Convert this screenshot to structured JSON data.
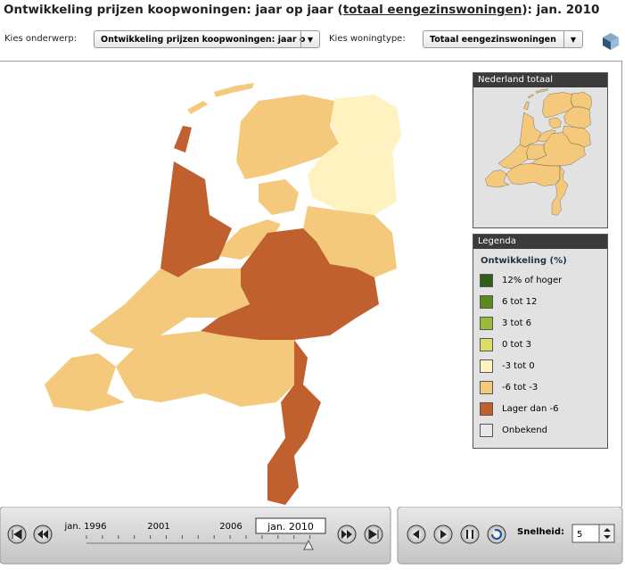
{
  "header": {
    "title_prefix": "Ontwikkeling prijzen koopwoningen: jaar op jaar (",
    "title_link": "totaal eengezinswoningen",
    "title_suffix": "): jan. 2010"
  },
  "controls": {
    "subject_label": "Kies onderwerp:",
    "subject_value": "Ontwikkeling prijzen koopwoningen: jaar o",
    "housing_label": "Kies woningtype:",
    "housing_value": "Totaal eengezinswoningen"
  },
  "overview": {
    "title": "Nederland totaal"
  },
  "legend": {
    "title": "Legenda",
    "subtitle": "Ontwikkeling (%)",
    "items": [
      {
        "label": "12% of hoger",
        "color": "#2f5f17"
      },
      {
        "label": "6 tot 12",
        "color": "#5a8a1e"
      },
      {
        "label": "3 tot 6",
        "color": "#9cba3a"
      },
      {
        "label": "0 tot 3",
        "color": "#dcdc6a"
      },
      {
        "label": "-3 tot 0",
        "color": "#fdf2c0"
      },
      {
        "label": "-6 tot -3",
        "color": "#f4c97c"
      },
      {
        "label": "Lager dan -6",
        "color": "#c0602e"
      },
      {
        "label": "Onbekend",
        "color": "#e8e8e8"
      }
    ]
  },
  "timeline": {
    "labels": [
      "jan. 1996",
      "2001",
      "2006"
    ],
    "current": "jan. 2010"
  },
  "playback": {
    "speed_label": "Snelheid:",
    "speed_value": "5"
  }
}
